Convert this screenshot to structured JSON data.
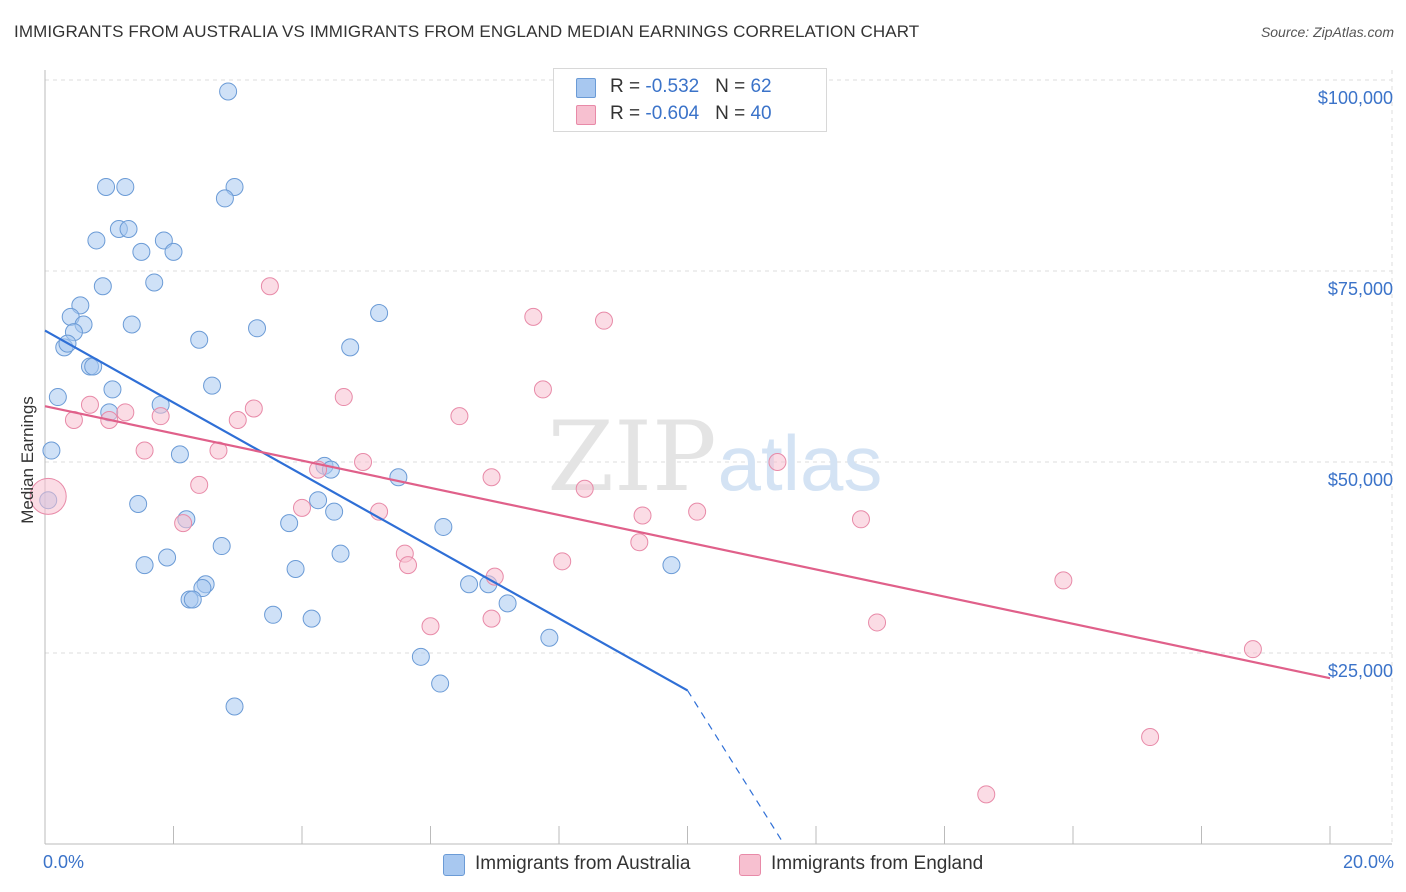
{
  "chart_data": {
    "type": "scatter",
    "title": "IMMIGRANTS FROM AUSTRALIA VS IMMIGRANTS FROM ENGLAND MEDIAN EARNINGS CORRELATION CHART",
    "source": "Source: ZipAtlas.com",
    "xlabel": "",
    "ylabel": "Median Earnings",
    "xlim": [
      0.0,
      20.0
    ],
    "ylim": [
      0,
      105000
    ],
    "x_tick_labels": [
      "0.0%",
      "20.0%"
    ],
    "y_ticks": [
      {
        "value": 25000,
        "label": "$25,000"
      },
      {
        "value": 50000,
        "label": "$50,000"
      },
      {
        "value": 75000,
        "label": "$75,000"
      },
      {
        "value": 100000,
        "label": "$100,000"
      }
    ],
    "grid": true,
    "legend_position": "top-center",
    "series": [
      {
        "name": "Immigrants from Australia",
        "color": "#a8c8f0",
        "stroke": "#6b9bd6",
        "trend_color": "#2f6fd6",
        "R": "-0.532",
        "N": "62",
        "trend": {
          "x0": 0.0,
          "y0": 67200,
          "x1": 10.0,
          "y1": 20100,
          "dash_x1": 11.5,
          "dash_y1": 0
        },
        "points": [
          [
            2.85,
            98500
          ],
          [
            0.95,
            86000
          ],
          [
            1.25,
            86000
          ],
          [
            2.95,
            86000
          ],
          [
            2.8,
            84500
          ],
          [
            1.15,
            80500
          ],
          [
            1.3,
            80500
          ],
          [
            0.8,
            79000
          ],
          [
            1.85,
            79000
          ],
          [
            1.5,
            77500
          ],
          [
            2.0,
            77500
          ],
          [
            1.7,
            73500
          ],
          [
            0.9,
            73000
          ],
          [
            0.55,
            70500
          ],
          [
            0.4,
            69000
          ],
          [
            0.6,
            68000
          ],
          [
            1.35,
            68000
          ],
          [
            3.3,
            67500
          ],
          [
            5.2,
            69500
          ],
          [
            0.45,
            67000
          ],
          [
            2.4,
            66000
          ],
          [
            0.3,
            65000
          ],
          [
            0.35,
            65500
          ],
          [
            4.75,
            65000
          ],
          [
            0.7,
            62500
          ],
          [
            0.75,
            62500
          ],
          [
            2.6,
            60000
          ],
          [
            1.05,
            59500
          ],
          [
            0.2,
            58500
          ],
          [
            1.8,
            57500
          ],
          [
            1.0,
            56500
          ],
          [
            0.1,
            51500
          ],
          [
            2.1,
            51000
          ],
          [
            4.35,
            49500
          ],
          [
            4.45,
            49000
          ],
          [
            5.5,
            48000
          ],
          [
            0.05,
            45000
          ],
          [
            4.25,
            45000
          ],
          [
            1.45,
            44500
          ],
          [
            4.5,
            43500
          ],
          [
            2.2,
            42500
          ],
          [
            3.8,
            42000
          ],
          [
            6.2,
            41500
          ],
          [
            2.75,
            39000
          ],
          [
            4.6,
            38000
          ],
          [
            1.9,
            37500
          ],
          [
            1.55,
            36500
          ],
          [
            3.9,
            36000
          ],
          [
            9.75,
            36500
          ],
          [
            2.5,
            34000
          ],
          [
            2.45,
            33500
          ],
          [
            6.6,
            34000
          ],
          [
            6.9,
            34000
          ],
          [
            2.25,
            32000
          ],
          [
            2.3,
            32000
          ],
          [
            7.2,
            31500
          ],
          [
            3.55,
            30000
          ],
          [
            4.15,
            29500
          ],
          [
            7.85,
            27000
          ],
          [
            5.85,
            24500
          ],
          [
            6.15,
            21000
          ],
          [
            2.95,
            18000
          ]
        ]
      },
      {
        "name": "Immigrants from England",
        "color": "#f7c0d0",
        "stroke": "#e88aa8",
        "trend_color": "#e0608a",
        "R": "-0.604",
        "N": "40",
        "trend": {
          "x0": 0.0,
          "y0": 57300,
          "x1": 20.0,
          "y1": 21700
        },
        "points": [
          [
            0.05,
            45500
          ],
          [
            3.5,
            73000
          ],
          [
            7.6,
            69000
          ],
          [
            8.7,
            68500
          ],
          [
            7.75,
            59500
          ],
          [
            4.65,
            58500
          ],
          [
            3.25,
            57000
          ],
          [
            0.7,
            57500
          ],
          [
            1.25,
            56500
          ],
          [
            1.8,
            56000
          ],
          [
            6.45,
            56000
          ],
          [
            0.45,
            55500
          ],
          [
            1.0,
            55500
          ],
          [
            3.0,
            55500
          ],
          [
            1.55,
            51500
          ],
          [
            2.7,
            51500
          ],
          [
            11.4,
            50000
          ],
          [
            4.95,
            50000
          ],
          [
            6.95,
            48000
          ],
          [
            8.4,
            46500
          ],
          [
            2.4,
            47000
          ],
          [
            4.25,
            49000
          ],
          [
            4.0,
            44000
          ],
          [
            5.2,
            43500
          ],
          [
            9.3,
            43000
          ],
          [
            10.15,
            43500
          ],
          [
            12.7,
            42500
          ],
          [
            2.15,
            42000
          ],
          [
            9.25,
            39500
          ],
          [
            5.6,
            38000
          ],
          [
            5.65,
            36500
          ],
          [
            8.05,
            37000
          ],
          [
            7.0,
            35000
          ],
          [
            15.85,
            34500
          ],
          [
            6.95,
            29500
          ],
          [
            12.95,
            29000
          ],
          [
            6.0,
            28500
          ],
          [
            18.8,
            25500
          ],
          [
            17.2,
            14000
          ],
          [
            14.65,
            6500
          ]
        ]
      }
    ],
    "watermark": "ZIPatlas"
  }
}
